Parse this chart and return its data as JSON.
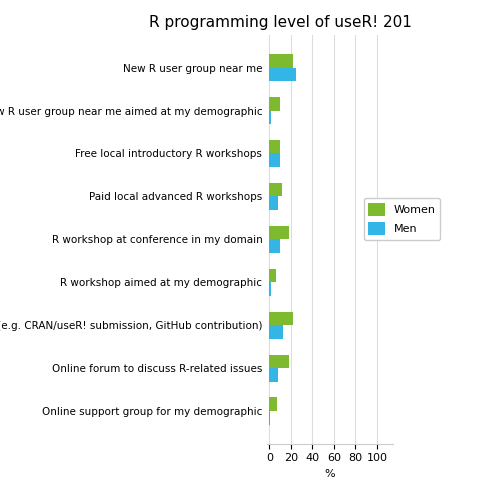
{
  "title": "R programming level of useR! 201",
  "categories": [
    "New R user group near me",
    "New R user group near me aimed at my demographic",
    "Free local introductory R workshops",
    "Paid local advanced R workshops",
    "R workshop at conference in my domain",
    "R workshop aimed at my demographic",
    "Mentoring (e.g. CRAN/useR! submission, GitHub contribution)",
    "Online forum to discuss R-related issues",
    "Online support group for my demographic"
  ],
  "women_values": [
    22,
    10,
    10,
    12,
    18,
    6,
    22,
    18,
    7
  ],
  "men_values": [
    25,
    2,
    10,
    8,
    10,
    2,
    13,
    8,
    1
  ],
  "women_color": "#7dba2f",
  "men_color": "#33b5e5",
  "xlabel": "%",
  "xlim": [
    -2,
    115
  ],
  "xticks": [
    0,
    20,
    40,
    60,
    80,
    100
  ],
  "background_color": "#ffffff",
  "grid_color": "#dddddd",
  "bar_height": 0.32,
  "title_fontsize": 11,
  "label_fontsize": 7.5,
  "tick_fontsize": 8
}
